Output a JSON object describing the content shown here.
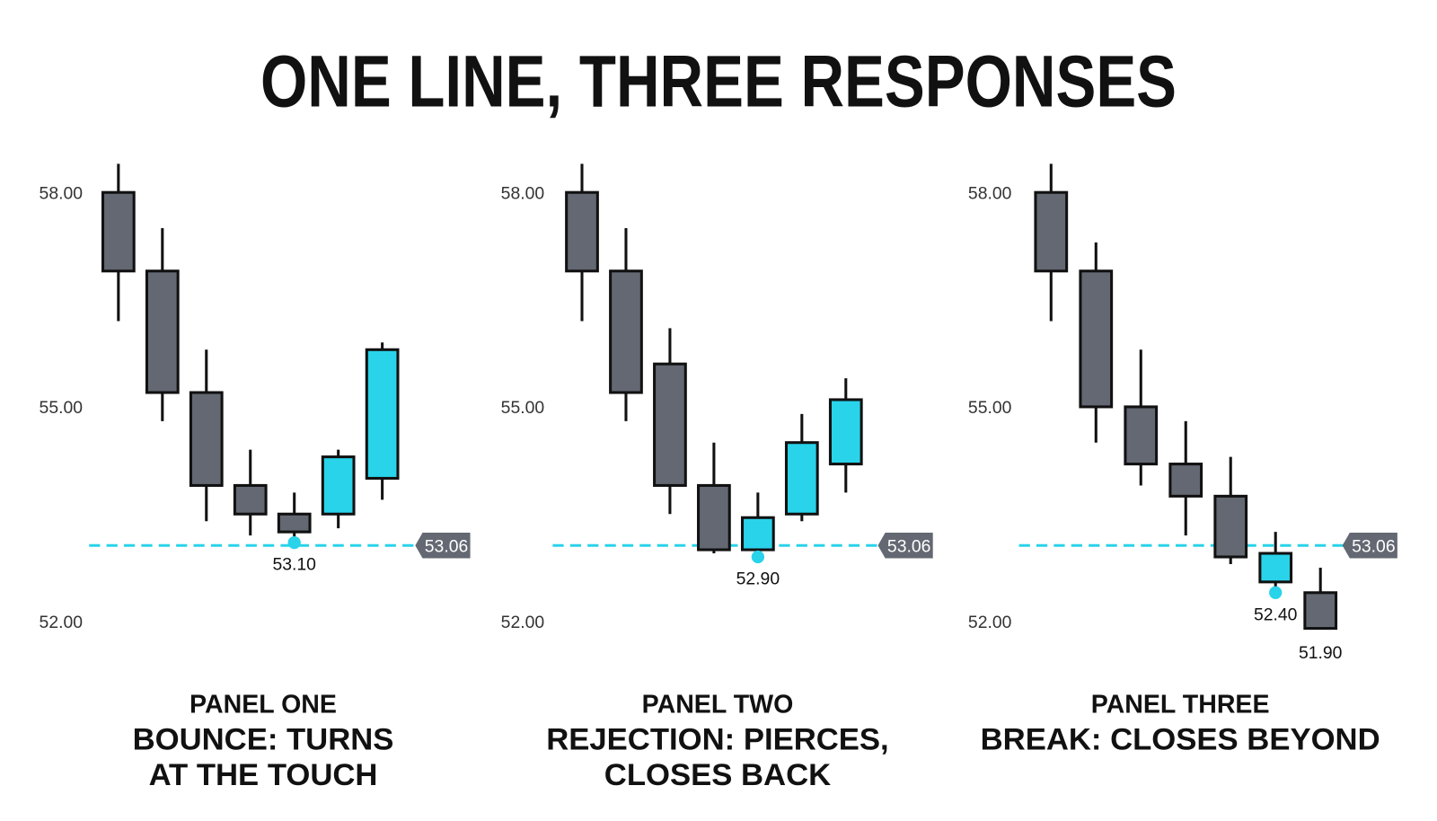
{
  "title": "ONE LINE, THREE RESPONSES",
  "chart_data": [
    {
      "type": "candlestick",
      "subtitle": "PANEL ONE",
      "caption": [
        "BOUNCE: TURNS",
        "AT THE TOUCH"
      ],
      "ylim": [
        51.5,
        58.5
      ],
      "yticks": [
        {
          "value": 58,
          "label": "58.00"
        },
        {
          "value": 55,
          "label": "55.00"
        },
        {
          "value": 52,
          "label": "52.00"
        }
      ],
      "level": {
        "value": 53.06,
        "label": "53.06"
      },
      "level_color": "#29d3ea",
      "open": [
        58.0,
        56.9,
        55.2,
        53.9,
        53.5,
        53.5,
        54.0
      ],
      "high": [
        58.4,
        57.5,
        55.8,
        54.4,
        53.8,
        54.4,
        55.9
      ],
      "low": [
        56.2,
        54.8,
        53.4,
        53.2,
        53.1,
        53.3,
        53.7
      ],
      "close": [
        56.9,
        55.2,
        53.9,
        53.5,
        53.25,
        54.3,
        55.8
      ],
      "low_labels": [
        null,
        null,
        null,
        null,
        "53.10",
        null,
        null
      ],
      "close_labels": [
        null,
        null,
        null,
        null,
        null,
        null,
        null
      ],
      "colors": [
        "#636872",
        "#636872",
        "#636872",
        "#636872",
        "#636872",
        "#29d3ea",
        "#29d3ea"
      ]
    },
    {
      "type": "candlestick",
      "subtitle": "PANEL TWO",
      "caption": [
        "REJECTION: PIERCES,",
        "CLOSES BACK"
      ],
      "ylim": [
        51.5,
        58.5
      ],
      "yticks": [
        {
          "value": 58,
          "label": "58.00"
        },
        {
          "value": 55,
          "label": "55.00"
        },
        {
          "value": 52,
          "label": "52.00"
        }
      ],
      "level": {
        "value": 53.06,
        "label": "53.06"
      },
      "level_color": "#29d3ea",
      "open": [
        58.0,
        56.9,
        55.6,
        53.9,
        53.0,
        53.5,
        54.2
      ],
      "high": [
        58.4,
        57.5,
        56.1,
        54.5,
        53.8,
        54.9,
        55.4
      ],
      "low": [
        56.2,
        54.8,
        53.5,
        52.95,
        52.9,
        53.4,
        53.8
      ],
      "close": [
        56.9,
        55.2,
        53.9,
        53.0,
        53.45,
        54.5,
        55.1
      ],
      "low_labels": [
        null,
        null,
        null,
        null,
        "52.90",
        null,
        null
      ],
      "close_labels": [
        null,
        null,
        null,
        null,
        null,
        null,
        null
      ],
      "colors": [
        "#636872",
        "#636872",
        "#636872",
        "#636872",
        "#29d3ea",
        "#29d3ea",
        "#29d3ea"
      ]
    },
    {
      "type": "candlestick",
      "subtitle": "PANEL THREE",
      "caption": [
        "BREAK: CLOSES BEYOND"
      ],
      "ylim": [
        51.5,
        58.5
      ],
      "yticks": [
        {
          "value": 58,
          "label": "58.00"
        },
        {
          "value": 55,
          "label": "55.00"
        },
        {
          "value": 52,
          "label": "52.00"
        }
      ],
      "level": {
        "value": 53.06,
        "label": "53.06"
      },
      "level_color": "#29d3ea",
      "open": [
        58.0,
        56.9,
        55.0,
        54.2,
        53.75,
        52.95,
        52.4
      ],
      "high": [
        58.4,
        57.3,
        55.8,
        54.8,
        54.3,
        53.25,
        52.75
      ],
      "low": [
        56.2,
        54.5,
        53.9,
        53.2,
        52.8,
        52.4,
        51.9
      ],
      "close": [
        56.9,
        55.0,
        54.2,
        53.75,
        52.9,
        52.55,
        51.9
      ],
      "low_labels": [
        null,
        null,
        null,
        null,
        null,
        "52.40",
        null
      ],
      "close_labels": [
        null,
        null,
        null,
        null,
        null,
        null,
        "51.90"
      ],
      "colors": [
        "#636872",
        "#636872",
        "#636872",
        "#636872",
        "#636872",
        "#29d3ea",
        "#636872"
      ]
    }
  ]
}
